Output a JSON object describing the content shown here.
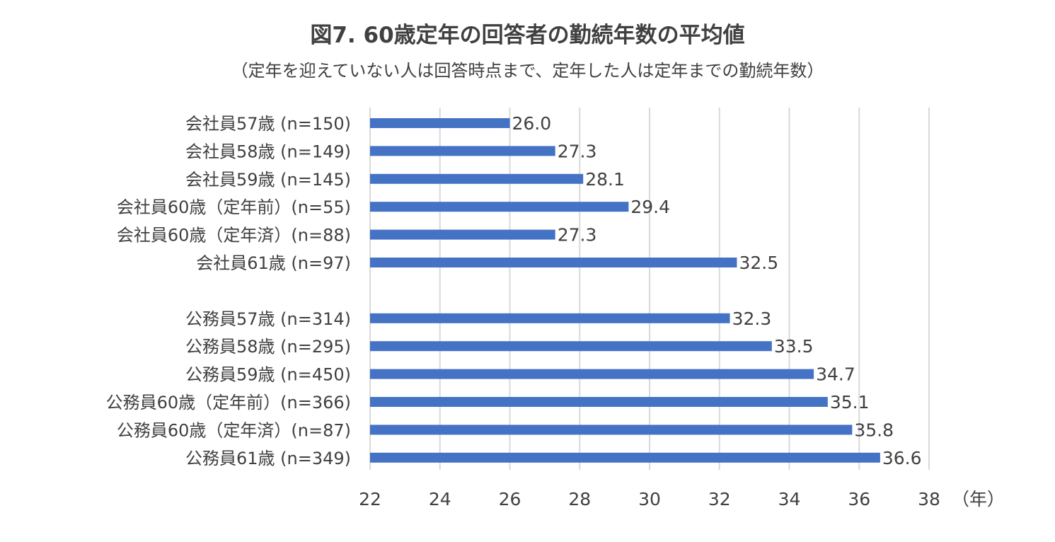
{
  "title": "図7. 60歳定年の回答者の勤続年数の平均値",
  "subtitle": "（定年を迎えていない人は回答時点まで、定年した人は定年までの勤続年数）",
  "chart_data": {
    "type": "bar",
    "orientation": "horizontal",
    "title": "図7. 60歳定年の回答者の勤続年数の平均値",
    "subtitle": "（定年を迎えていない人は回答時点まで、定年した人は定年までの勤続年数）",
    "xlabel": "（年）",
    "ylabel": "",
    "xlim": [
      22,
      38
    ],
    "x_ticks": [
      "22",
      "24",
      "26",
      "28",
      "30",
      "32",
      "34",
      "36",
      "38"
    ],
    "grid": "vertical",
    "bar_color": "#4472C4",
    "groups": [
      {
        "categories": [
          "会社員57歳 (n=150)",
          "会社員58歳 (n=149)",
          "会社員59歳 (n=145)",
          "会社員60歳（定年前）(n=55)",
          "会社員60歳（定年済）(n=88)",
          "会社員61歳 (n=97)"
        ],
        "values": [
          26.0,
          27.3,
          28.1,
          29.4,
          27.3,
          32.5
        ],
        "value_labels": [
          "26.0",
          "27.3",
          "28.1",
          "29.4",
          "27.3",
          "32.5"
        ]
      },
      {
        "categories": [
          "公務員57歳 (n=314)",
          "公務員58歳 (n=295)",
          "公務員59歳 (n=450)",
          "公務員60歳（定年前）(n=366)",
          "公務員60歳（定年済）(n=87)",
          "公務員61歳 (n=349)"
        ],
        "values": [
          32.3,
          33.5,
          34.7,
          35.1,
          35.8,
          36.6
        ],
        "value_labels": [
          "32.3",
          "33.5",
          "34.7",
          "35.1",
          "35.8",
          "36.6"
        ]
      }
    ]
  }
}
